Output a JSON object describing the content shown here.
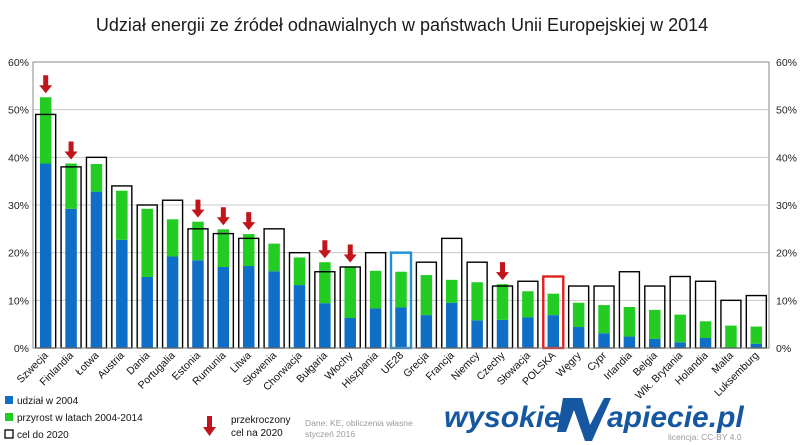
{
  "chart_data": {
    "type": "bar",
    "title": "Udział energii ze źródeł odnawialnych w państwach Unii Europejskiej w 2014",
    "ylim": [
      0,
      60
    ],
    "y_ticks": [
      "0%",
      "10%",
      "20%",
      "30%",
      "40%",
      "50%",
      "60%"
    ],
    "categories": [
      "Szwecja",
      "Finlandia",
      "Łotwa",
      "Austria",
      "Dania",
      "Portugalia",
      "Estonia",
      "Rumunia",
      "Litwa",
      "Słowenia",
      "Chorwacja",
      "Bułgaria",
      "Włochy",
      "Hiszpania",
      "UE28",
      "Grecja",
      "Francja",
      "Niemcy",
      "Czechy",
      "Słowacja",
      "POLSKA",
      "Węgry",
      "Cypr",
      "Irlandia",
      "Belgia",
      "Wlk. Brytania",
      "Holandia",
      "Malta",
      "Luksemburg"
    ],
    "series": [
      {
        "name": "udział w 2004",
        "color": "#0f6fc6",
        "values": [
          38.7,
          29.2,
          32.8,
          22.7,
          14.9,
          19.2,
          18.4,
          17.0,
          17.2,
          16.1,
          13.2,
          9.4,
          6.3,
          8.3,
          8.5,
          6.9,
          9.5,
          5.8,
          5.9,
          6.4,
          6.9,
          4.4,
          3.1,
          2.4,
          1.9,
          1.2,
          2.1,
          0.1,
          0.9
        ]
      },
      {
        "name": "przyrost w latach 2004-2014",
        "color": "#22cc22",
        "values": [
          13.9,
          9.5,
          5.8,
          10.3,
          14.3,
          7.8,
          8.1,
          7.9,
          6.7,
          5.8,
          5.8,
          8.6,
          10.8,
          7.9,
          7.5,
          8.4,
          4.8,
          8.0,
          7.5,
          5.5,
          4.5,
          5.1,
          5.9,
          6.2,
          6.1,
          5.8,
          3.5,
          4.6,
          3.6
        ]
      },
      {
        "name": "cel do 2020",
        "color": "#000000",
        "values": [
          49,
          38,
          40,
          34,
          30,
          31,
          25,
          24,
          23,
          25,
          20,
          16,
          17,
          20,
          20,
          18,
          23,
          18,
          13,
          14,
          15,
          13,
          13,
          16,
          13,
          15,
          14,
          10,
          11
        ]
      }
    ],
    "exceeded_target": [
      "Szwecja",
      "Finlandia",
      "Estonia",
      "Rumunia",
      "Litwa",
      "Bułgaria",
      "Włochy",
      "Czechy"
    ],
    "highlighted": {
      "UE28": "#1f8fd6",
      "POLSKA": "#e02020"
    }
  },
  "legend": {
    "share_2004": "udział w 2004",
    "growth": "przyrost w latach 2004-2014",
    "target": "cel do 2020",
    "exceeded_line1": "przekroczony",
    "exceeded_line2": "cel na 2020"
  },
  "source": {
    "line1": "Dane: KE, obliczenia własne",
    "line2": "styczeń 2016"
  },
  "brand": {
    "text_a": "wysokie",
    "text_b": "apiecie.pl",
    "license": "licencja: CC-BY 4.0"
  }
}
